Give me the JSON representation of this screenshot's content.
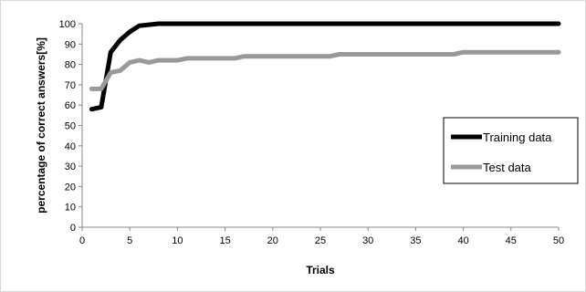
{
  "chart_data": {
    "type": "line",
    "xlabel": "Trials",
    "ylabel": "percentage of correct answers[%]",
    "xlim": [
      0,
      50
    ],
    "ylim": [
      0,
      100
    ],
    "xticks": [
      0,
      5,
      10,
      15,
      20,
      25,
      30,
      35,
      40,
      45,
      50
    ],
    "yticks": [
      0,
      10,
      20,
      30,
      40,
      50,
      60,
      70,
      80,
      90,
      100
    ],
    "grid": false,
    "legend": "right",
    "series": [
      {
        "name": "Training data",
        "color": "#000000",
        "x": [
          1,
          2,
          3,
          4,
          5,
          6,
          7,
          8,
          9,
          10,
          15,
          20,
          25,
          30,
          35,
          40,
          45,
          50
        ],
        "y": [
          58,
          59,
          86,
          92,
          96,
          99,
          99.5,
          100,
          100,
          100,
          100,
          100,
          100,
          100,
          100,
          100,
          100,
          100
        ]
      },
      {
        "name": "Test data",
        "color": "#999999",
        "x": [
          1,
          2,
          3,
          4,
          5,
          6,
          7,
          8,
          9,
          10,
          11,
          12,
          13,
          14,
          15,
          16,
          17,
          18,
          19,
          20,
          21,
          22,
          23,
          24,
          25,
          26,
          27,
          28,
          29,
          30,
          31,
          32,
          33,
          34,
          35,
          36,
          37,
          38,
          39,
          40,
          41,
          42,
          43,
          44,
          45,
          46,
          47,
          48,
          49,
          50
        ],
        "y": [
          68,
          68,
          76,
          77,
          81,
          82,
          81,
          82,
          82,
          82,
          83,
          83,
          83,
          83,
          83,
          83,
          84,
          84,
          84,
          84,
          84,
          84,
          84,
          84,
          84,
          84,
          85,
          85,
          85,
          85,
          85,
          85,
          85,
          85,
          85,
          85,
          85,
          85,
          85,
          86,
          86,
          86,
          86,
          86,
          86,
          86,
          86,
          86,
          86,
          86
        ]
      }
    ]
  }
}
